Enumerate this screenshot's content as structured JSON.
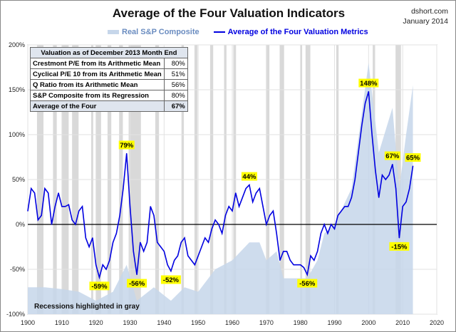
{
  "chart_data": {
    "type": "line",
    "title": "Average of the Four Valuation Indicators",
    "source": "dshort.com",
    "date": "January 2014",
    "xlim": [
      1900,
      2020
    ],
    "ylim": [
      -100,
      200
    ],
    "x_ticks": [
      "1900",
      "1910",
      "1920",
      "1930",
      "1940",
      "1950",
      "1960",
      "1970",
      "1980",
      "1990",
      "2000",
      "2010",
      "2020"
    ],
    "y_ticks": [
      "200%",
      "150%",
      "100%",
      "50%",
      "0%",
      "-50%",
      "-100%"
    ],
    "grid": true,
    "legend_position": "top",
    "series": [
      {
        "name": "Real S&P Composite",
        "type": "area",
        "color": "#c6d6ea",
        "x": [
          1900,
          1905,
          1910,
          1915,
          1920,
          1925,
          1929,
          1932,
          1937,
          1942,
          1946,
          1950,
          1955,
          1960,
          1965,
          1968,
          1970,
          1973,
          1975,
          1980,
          1982,
          1985,
          1987,
          1990,
          1995,
          2000,
          2003,
          2007,
          2009,
          2011,
          2013
        ],
        "values": [
          -70,
          -70,
          -72,
          -75,
          -85,
          -75,
          -45,
          -85,
          -70,
          -85,
          -70,
          -75,
          -50,
          -40,
          -20,
          -20,
          -40,
          -30,
          -60,
          -60,
          -60,
          -40,
          -10,
          0,
          40,
          180,
          80,
          130,
          40,
          100,
          155
        ]
      },
      {
        "name": "Average of the Four Valuation Metrics",
        "type": "line",
        "color": "#0000e0",
        "x": [
          1900,
          1901,
          1902,
          1903,
          1904,
          1905,
          1906,
          1907,
          1908,
          1909,
          1910,
          1911,
          1912,
          1913,
          1914,
          1915,
          1916,
          1917,
          1918,
          1919,
          1920,
          1921,
          1922,
          1923,
          1924,
          1925,
          1926,
          1927,
          1928,
          1929,
          1930,
          1931,
          1932,
          1933,
          1934,
          1935,
          1936,
          1937,
          1938,
          1939,
          1940,
          1941,
          1942,
          1943,
          1944,
          1945,
          1946,
          1947,
          1948,
          1949,
          1950,
          1951,
          1952,
          1953,
          1954,
          1955,
          1956,
          1957,
          1958,
          1959,
          1960,
          1961,
          1962,
          1963,
          1964,
          1965,
          1966,
          1967,
          1968,
          1969,
          1970,
          1971,
          1972,
          1973,
          1974,
          1975,
          1976,
          1977,
          1978,
          1979,
          1980,
          1981,
          1982,
          1983,
          1984,
          1985,
          1986,
          1987,
          1988,
          1989,
          1990,
          1991,
          1992,
          1993,
          1994,
          1995,
          1996,
          1997,
          1998,
          1999,
          2000,
          2001,
          2002,
          2003,
          2004,
          2005,
          2006,
          2007,
          2008,
          2009,
          2010,
          2011,
          2012,
          2013
        ],
        "values": [
          15,
          40,
          35,
          5,
          10,
          40,
          35,
          0,
          20,
          35,
          20,
          20,
          22,
          5,
          0,
          15,
          20,
          -15,
          -25,
          -15,
          -45,
          -59,
          -45,
          -50,
          -40,
          -20,
          -10,
          10,
          40,
          79,
          20,
          -30,
          -56,
          -20,
          -30,
          -20,
          20,
          10,
          -20,
          -25,
          -30,
          -45,
          -52,
          -40,
          -35,
          -20,
          -15,
          -35,
          -40,
          -45,
          -35,
          -25,
          -15,
          -20,
          -5,
          5,
          0,
          -10,
          10,
          20,
          15,
          35,
          20,
          30,
          40,
          44,
          25,
          35,
          40,
          20,
          0,
          10,
          15,
          -10,
          -40,
          -30,
          -30,
          -40,
          -45,
          -45,
          -45,
          -48,
          -56,
          -35,
          -40,
          -30,
          -10,
          0,
          -10,
          0,
          -5,
          10,
          15,
          20,
          20,
          30,
          50,
          80,
          110,
          135,
          148,
          100,
          60,
          30,
          55,
          50,
          55,
          67,
          40,
          -15,
          20,
          25,
          40,
          65
        ]
      }
    ],
    "annotations": [
      {
        "x": 1929,
        "y": 79,
        "text": "79%"
      },
      {
        "x": 1921,
        "y": -59,
        "text": "-59%"
      },
      {
        "x": 1932,
        "y": -56,
        "text": "-56%"
      },
      {
        "x": 1942,
        "y": -52,
        "text": "-52%"
      },
      {
        "x": 1965,
        "y": 44,
        "text": "44%"
      },
      {
        "x": 1982,
        "y": -56,
        "text": "-56%"
      },
      {
        "x": 2000,
        "y": 148,
        "text": "148%"
      },
      {
        "x": 2007,
        "y": 67,
        "text": "67%"
      },
      {
        "x": 2013,
        "y": 65,
        "text": "65%"
      },
      {
        "x": 2009,
        "y": -15,
        "text": "-15%"
      }
    ],
    "recessions": [
      [
        1902.7,
        1904.6
      ],
      [
        1907.4,
        1908.5
      ],
      [
        1910,
        1912
      ],
      [
        1913,
        1914.9
      ],
      [
        1918.6,
        1919.2
      ],
      [
        1920,
        1921.5
      ],
      [
        1923.4,
        1924.5
      ],
      [
        1926.8,
        1927.9
      ],
      [
        1929.6,
        1933.2
      ],
      [
        1937.4,
        1938.5
      ],
      [
        1945.1,
        1945.8
      ],
      [
        1948.9,
        1949.8
      ],
      [
        1953.5,
        1954.4
      ],
      [
        1957.6,
        1958.3
      ],
      [
        1960.3,
        1961.1
      ],
      [
        1969.9,
        1970.9
      ],
      [
        1973.9,
        1975.2
      ],
      [
        1980,
        1980.5
      ],
      [
        1981.5,
        1982.9
      ],
      [
        1990.5,
        1991.2
      ],
      [
        2001.2,
        2001.9
      ],
      [
        2007.9,
        2009.5
      ]
    ],
    "recession_note": "Recessions highlighted in gray",
    "table": {
      "header": "Valuation as of December 2013 Month End",
      "rows": [
        {
          "label": "Crestmont P/E from its Arithmetic Mean",
          "value": "80%"
        },
        {
          "label": "Cyclical P/E 10 from its Arithmetic Mean",
          "value": "51%"
        },
        {
          "label": "Q Ratio from its Arithmetic Mean",
          "value": "56%"
        },
        {
          "label": "S&P Composite from its Regression",
          "value": "80%"
        }
      ],
      "average": {
        "label": "Average of the Four",
        "value": "67%"
      }
    }
  }
}
